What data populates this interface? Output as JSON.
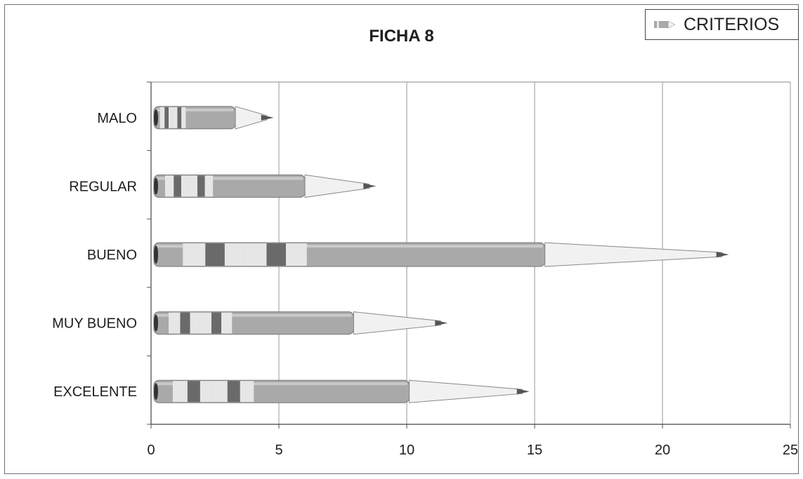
{
  "chart_data": {
    "type": "bar",
    "title": "FICHA 8",
    "categories": [
      "MALO",
      "REGULAR",
      "BUENO",
      "MUY BUENO",
      "EXCELENTE"
    ],
    "series": [
      {
        "name": "CRITERIOS",
        "values": [
          4.8,
          8.8,
          22.6,
          11.6,
          14.8
        ]
      }
    ],
    "xlim": [
      0,
      25
    ],
    "xticks": [
      "0",
      "5",
      "10",
      "15",
      "20",
      "25"
    ],
    "grid": "vertical",
    "legend_position": "top-right",
    "colors": {
      "body": "#a9a9a9",
      "band": "#e6e6e6",
      "ring": "#6a6a6a",
      "wood": "#f1f1f1",
      "lead": "#555555",
      "grid": "#9a9a9a"
    }
  }
}
